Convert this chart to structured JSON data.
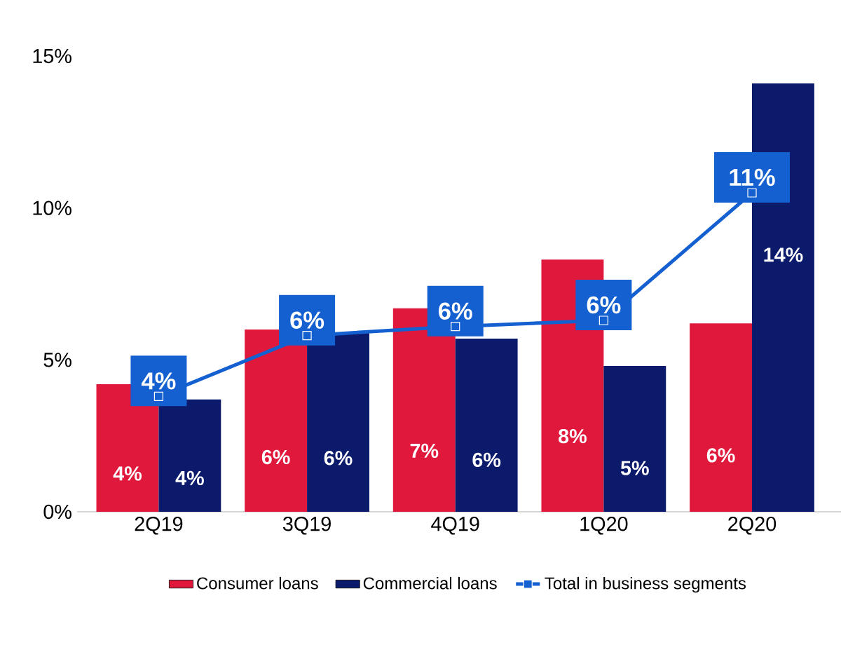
{
  "chart_data": {
    "type": "bar",
    "categories": [
      "2Q19",
      "3Q19",
      "4Q19",
      "1Q20",
      "2Q20"
    ],
    "series": [
      {
        "name": "Consumer loans",
        "color": "#e0183c",
        "values": [
          4.2,
          6.0,
          6.7,
          8.3,
          6.2
        ],
        "value_labels": [
          "4%",
          "6%",
          "7%",
          "8%",
          "6%"
        ]
      },
      {
        "name": "Commercial loans",
        "color": "#0b1a6b",
        "values": [
          3.7,
          5.9,
          5.7,
          4.8,
          14.1
        ],
        "value_labels": [
          "4%",
          "6%",
          "6%",
          "5%",
          "14%"
        ]
      },
      {
        "name": "Total in business segments",
        "type": "line",
        "color": "#1560d0",
        "values": [
          3.8,
          5.8,
          6.1,
          6.3,
          10.5
        ],
        "value_labels": [
          "4%",
          "6%",
          "6%",
          "6%",
          "11%"
        ]
      }
    ],
    "ylim": [
      0,
      15
    ],
    "yticks": [
      {
        "value": 0,
        "label": "0%"
      },
      {
        "value": 5,
        "label": "5%"
      },
      {
        "value": 10,
        "label": "10%"
      },
      {
        "value": 15,
        "label": "15%"
      }
    ],
    "grid": false,
    "legend": "bottom",
    "marker": "square"
  }
}
